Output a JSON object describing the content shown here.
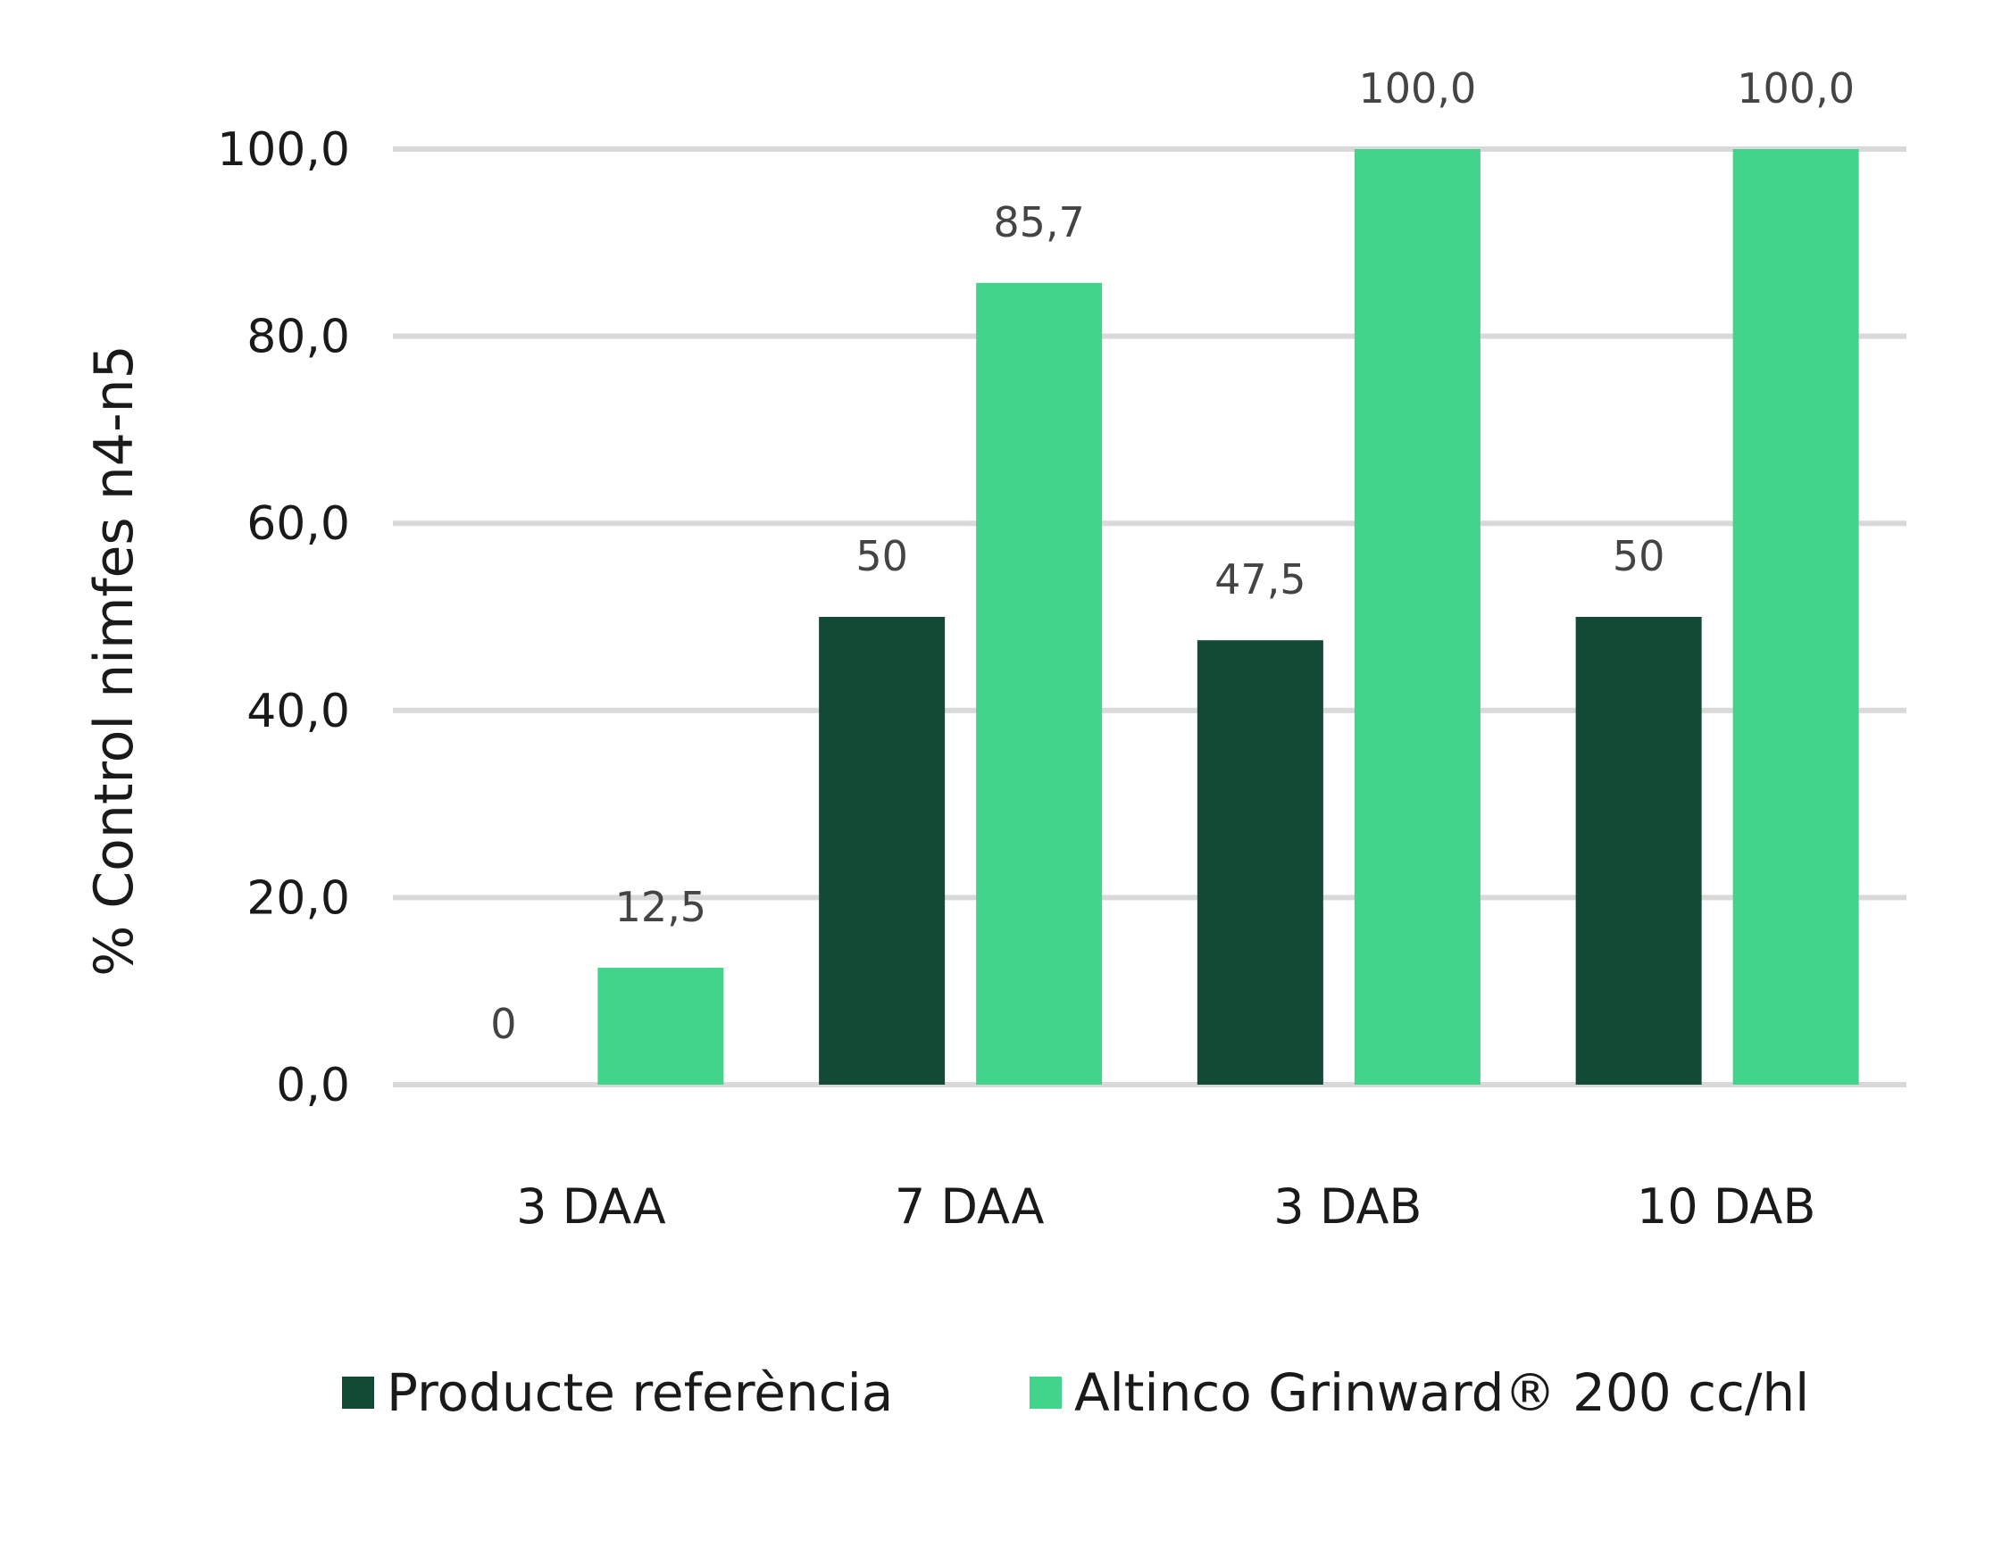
{
  "chart_data": {
    "type": "bar",
    "categories": [
      "3 DAA",
      "7 DAA",
      "3 DAB",
      "10 DAB"
    ],
    "series": [
      {
        "name": "Producte referència",
        "color": "#134a36",
        "values": [
          0,
          50,
          47.5,
          50
        ],
        "labels": [
          "0",
          "50",
          "47,5",
          "50"
        ]
      },
      {
        "name": "Altinco Grinward® 200 cc/hl",
        "color": "#43d48c",
        "values": [
          12.5,
          85.7,
          100,
          100
        ],
        "labels": [
          "12,5",
          "85,7",
          "100,0",
          "100,0"
        ]
      }
    ],
    "ylabel": "% Control nimfes n4-n5",
    "xlabel": "",
    "ylim": [
      0,
      100
    ],
    "yticks": [
      0,
      20,
      40,
      60,
      80,
      100
    ],
    "ytick_labels": [
      "0,0",
      "20,0",
      "40,0",
      "60,0",
      "80,0",
      "100,0"
    ],
    "grid": true,
    "legend_position": "bottom"
  }
}
